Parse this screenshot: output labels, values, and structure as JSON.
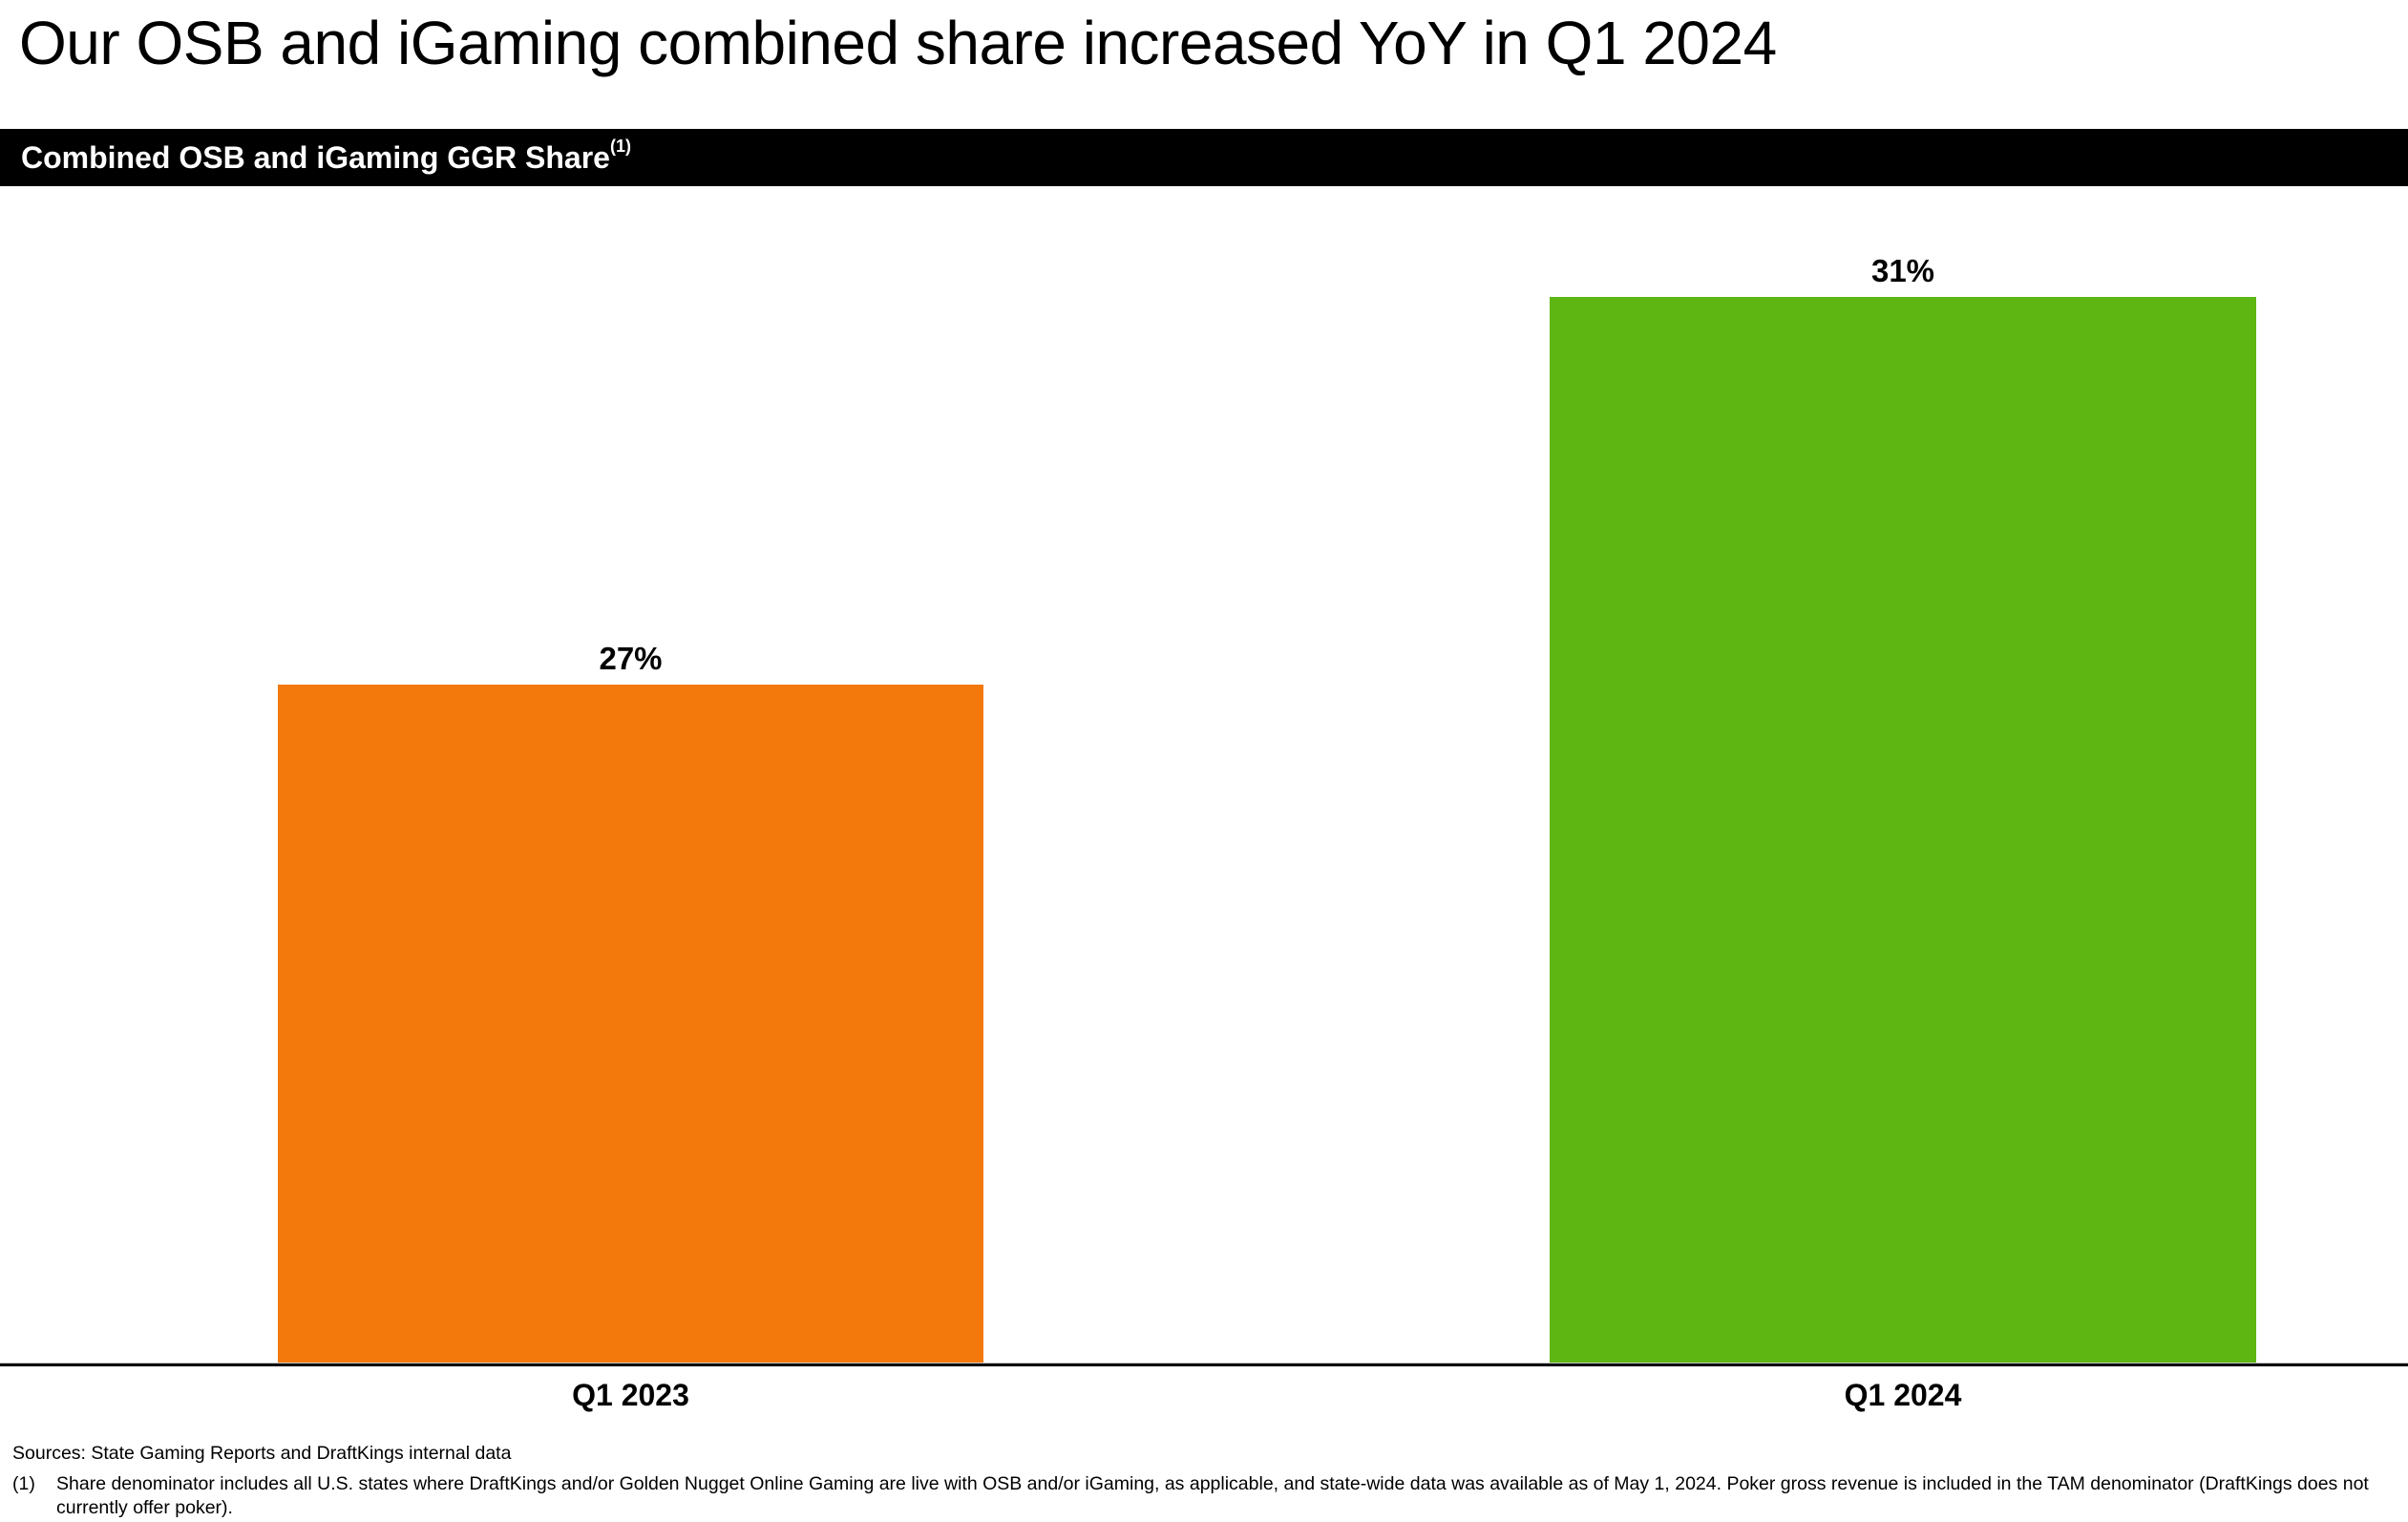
{
  "slide": {
    "title": "Our OSB and iGaming combined share increased YoY in Q1 2024"
  },
  "banner": {
    "label": "Combined OSB and iGaming GGR Share",
    "footnote_ref": "(1)"
  },
  "chart_data": {
    "type": "bar",
    "title": "Combined OSB and iGaming GGR Share",
    "categories": [
      "Q1 2023",
      "Q1 2024"
    ],
    "values": [
      27,
      31
    ],
    "value_labels": [
      "27%",
      "31%"
    ],
    "unit": "%",
    "bar_colors": [
      "#F4790D",
      "#5DB612"
    ],
    "ylim": [
      20,
      32
    ],
    "axis_visible": false,
    "grid": false,
    "legend": false,
    "value_label_position": "above-bar"
  },
  "footer": {
    "sources": "Sources: State Gaming Reports and DraftKings internal data",
    "footnote_marker": "(1)",
    "footnote_text": "Share denominator includes all U.S. states where DraftKings and/or Golden Nugget Online Gaming are live with OSB and/or iGaming, as applicable, and state-wide data was available as of May 1, 2024. Poker gross revenue is included in the TAM denominator (DraftKings does not currently offer poker)."
  }
}
